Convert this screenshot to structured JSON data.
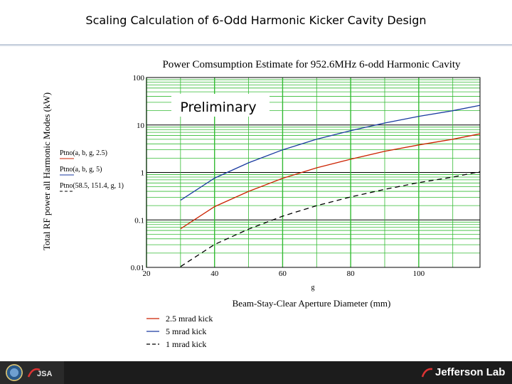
{
  "slide": {
    "title": "Scaling Calculation of 6-Odd Harmonic Kicker Cavity Design"
  },
  "footer": {
    "brand": "Jefferson Lab",
    "left_logo_text": "JSA"
  },
  "chart_data": {
    "type": "line",
    "title": "Power Comsumption Estimate for 952.6MHz 6-odd Harmonic Cavity",
    "xlabel": "Beam-Stay-Clear Aperture Diameter (mm)",
    "xvar": "g",
    "ylabel": "Total RF power all Harmonic Modes (kW)",
    "annotation": "Preliminary",
    "xlim": [
      20,
      118
    ],
    "ylim": [
      0.01,
      100
    ],
    "yscale": "log",
    "grid": true,
    "xticks": [
      20,
      40,
      60,
      80,
      100
    ],
    "yticks": [
      {
        "value": 0.01,
        "label": "0.01"
      },
      {
        "value": 0.1,
        "label": "0.1"
      },
      {
        "value": 1,
        "label": "1"
      },
      {
        "value": 10,
        "label": "10"
      },
      {
        "value": 100,
        "label": "100"
      }
    ],
    "yfunc_labels": [
      "Ptno(a, b, g, 2.5)",
      "Ptno(a, b, g, 5)",
      "Ptno(58.5, 151.4, g, 1)"
    ],
    "legend": {
      "placement": "bottom",
      "entries": [
        "2.5 mrad kick",
        "5 mrad kick",
        "1 mrad kick"
      ]
    },
    "x": [
      30,
      40,
      50,
      60,
      70,
      80,
      90,
      100,
      110,
      118
    ],
    "series": [
      {
        "name": "2.5 mrad kick",
        "color": "#cc2200",
        "dash": "solid",
        "values": [
          0.065,
          0.19,
          0.4,
          0.75,
          1.25,
          1.9,
          2.8,
          3.8,
          5.0,
          6.5
        ]
      },
      {
        "name": "5 mrad kick",
        "color": "#1a3aa0",
        "dash": "solid",
        "values": [
          0.26,
          0.76,
          1.6,
          3.0,
          5.0,
          7.6,
          11,
          15.2,
          20,
          26
        ]
      },
      {
        "name": "1 mrad kick",
        "color": "#000000",
        "dash": "dashed",
        "values": [
          0.0104,
          0.0304,
          0.064,
          0.12,
          0.2,
          0.304,
          0.44,
          0.61,
          0.8,
          1.04
        ]
      }
    ]
  }
}
